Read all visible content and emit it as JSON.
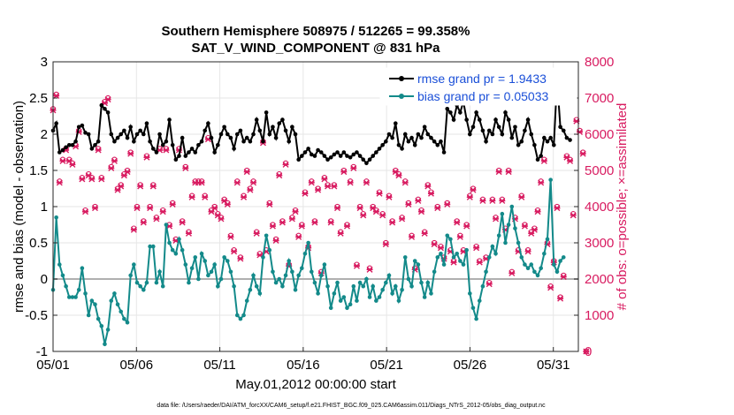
{
  "chart_data": {
    "type": "line",
    "title": "Southern Hemisphere 508975 / 512265 = 99.358%",
    "subtitle": "SAT_V_WIND_COMPONENT @ 831 hPa",
    "xlabel": "May.01,2012 00:00:00 start",
    "ylabel_left": "rmse and bias (model - observation)",
    "ylabel_right": "# of obs: o=possible; ×=assimilated",
    "footnote": "data file: /Users/raeder/DAI/ATM_forcXX/CAM6_setup/f.e21.FHIST_BGC.f09_025.CAM6assim.011/Diags_NTrS_2012-05/obs_diag_output.nc",
    "xlim": [
      0,
      31.5
    ],
    "ylim_left": [
      -1,
      3
    ],
    "ylim_right": [
      0,
      8000
    ],
    "x_ticks": [
      0,
      5,
      10,
      15,
      20,
      25,
      30
    ],
    "x_tick_labels": [
      "05/01",
      "05/06",
      "05/11",
      "05/16",
      "05/21",
      "05/26",
      "05/31"
    ],
    "y_ticks_left": [
      -1,
      -0.5,
      0,
      0.5,
      1,
      1.5,
      2,
      2.5,
      3
    ],
    "y_tick_labels_left": [
      "-1",
      "-0.5",
      "0",
      "0.5",
      "1",
      "1.5",
      "2",
      "2.5",
      "3"
    ],
    "y_ticks_right": [
      0,
      1000,
      2000,
      3000,
      4000,
      5000,
      6000,
      7000,
      8000
    ],
    "y_tick_labels_right": [
      "0",
      "1000",
      "2000",
      "3000",
      "4000",
      "5000",
      "6000",
      "7000",
      "8000"
    ],
    "grid": true,
    "legend_location": "top-right",
    "colors": {
      "rmse": "#000000",
      "bias": "#138a8a",
      "obs": "#d81b60",
      "zero": "#b0b0b0",
      "legend_text": "#1a4fd8"
    },
    "series": [
      {
        "name": "rmse grand pr = 1.9433",
        "legend_label": "rmse grand pr = 1.9433",
        "axis": "left",
        "values": [
          2.05,
          2.15,
          1.75,
          1.78,
          1.82,
          1.85,
          1.85,
          1.9,
          2.1,
          2.12,
          2.02,
          2.0,
          1.8,
          1.85,
          1.9,
          2.4,
          2.35,
          2.3,
          2.0,
          1.9,
          1.95,
          2.0,
          2.05,
          1.95,
          2.1,
          1.9,
          2.0,
          2.05,
          2.0,
          2.15,
          1.9,
          1.8,
          1.75,
          2.0,
          1.85,
          1.9,
          2.2,
          1.85,
          1.65,
          1.7,
          1.95,
          1.7,
          1.75,
          1.8,
          1.75,
          1.85,
          1.9,
          2.05,
          2.15,
          1.95,
          1.75,
          1.85,
          2.0,
          2.1,
          2.0,
          1.95,
          1.8,
          2.0,
          2.05,
          1.9,
          1.95,
          1.9,
          2.0,
          2.2,
          2.05,
          1.9,
          2.3,
          2.0,
          2.1,
          1.95,
          2.15,
          2.2,
          2.05,
          1.9,
          2.1,
          2.0,
          1.65,
          1.7,
          1.75,
          1.8,
          1.72,
          1.7,
          1.78,
          1.75,
          1.7,
          1.65,
          1.68,
          1.72,
          1.75,
          1.7,
          1.75,
          1.7,
          1.68,
          1.72,
          1.75,
          1.7,
          1.65,
          1.6,
          1.65,
          1.7,
          1.75,
          1.8,
          1.85,
          1.9,
          2.0,
          1.95,
          2.15,
          1.85,
          1.8,
          2.0,
          1.9,
          1.95,
          1.85,
          2.0,
          1.95,
          2.1,
          2.0,
          1.95,
          1.9,
          1.85,
          1.9,
          1.75,
          2.35,
          2.3,
          2.2,
          2.4,
          2.3,
          2.45,
          2.2,
          2.0,
          2.1,
          2.3,
          2.2,
          2.05,
          1.9,
          2.05,
          2.0,
          2.2,
          2.1,
          2.0,
          2.3,
          2.2,
          1.95,
          2.1,
          1.85,
          1.9,
          2.05,
          2.2,
          2.0,
          1.85,
          1.65,
          1.7,
          1.95,
          1.9,
          1.95,
          1.85,
          2.75,
          2.1,
          2.05,
          1.95,
          1.92
        ]
      },
      {
        "name": "bias grand pr = 0.05033",
        "legend_label": "bias grand pr = 0.05033",
        "axis": "left",
        "values": [
          -0.15,
          0.85,
          0.2,
          0.05,
          -0.1,
          -0.25,
          -0.25,
          -0.25,
          -0.15,
          0.15,
          -0.2,
          -0.5,
          -0.3,
          -0.35,
          -0.55,
          -0.65,
          -0.9,
          -0.7,
          -0.3,
          -0.2,
          -0.35,
          -0.45,
          -0.55,
          -0.6,
          0.05,
          0.2,
          -0.05,
          -0.1,
          -0.15,
          -0.05,
          0.45,
          0.45,
          -0.05,
          0.1,
          -0.1,
          0.75,
          0.5,
          0.4,
          0.35,
          0.55,
          0.4,
          0.2,
          -0.05,
          0.15,
          0.3,
          0.0,
          0.35,
          0.25,
          0.05,
          0.1,
          0.2,
          -0.1,
          0.0,
          0.3,
          0.25,
          0.1,
          -0.1,
          -0.5,
          -0.55,
          -0.5,
          -0.3,
          -0.15,
          0.05,
          -0.1,
          -0.2,
          0.3,
          0.6,
          0.4,
          0.1,
          -0.05,
          0.0,
          -0.1,
          0.05,
          0.25,
          0.1,
          -0.15,
          0.05,
          0.15,
          0.35,
          0.5,
          0.1,
          -0.05,
          -0.2,
          0.05,
          0.2,
          -0.1,
          -0.4,
          -0.2,
          -0.05,
          -0.3,
          -0.25,
          -0.4,
          -0.35,
          -0.1,
          -0.3,
          -0.05,
          -0.1,
          0.0,
          -0.25,
          -0.1,
          -0.3,
          -0.25,
          -0.15,
          -0.05,
          0.05,
          -0.2,
          -0.1,
          -0.3,
          -0.15,
          0.3,
          0.0,
          -0.1,
          0.25,
          0.2,
          -0.05,
          -0.25,
          -0.05,
          -0.2,
          0.1,
          0.3,
          0.35,
          0.2,
          0.6,
          0.55,
          0.3,
          0.35,
          0.25,
          0.2,
          0.4,
          -0.2,
          -0.4,
          -0.55,
          -0.3,
          -0.1,
          0.1,
          0.3,
          0.45,
          0.35,
          0.6,
          0.9,
          0.5,
          0.75,
          1.0,
          0.7,
          0.5,
          0.3,
          0.2,
          0.15,
          0.2,
          0.1,
          0.05,
          0.15,
          0.35,
          0.55,
          1.37,
          0.2,
          0.1,
          0.25,
          0.3
        ]
      },
      {
        "name": "# of obs possible",
        "axis": "right",
        "marker": "o",
        "values": [
          6700,
          7100,
          4700,
          5300,
          5600,
          5300,
          5200,
          5700,
          6100,
          4800,
          3900,
          4900,
          4800,
          4000,
          5600,
          4800,
          6900,
          7000,
          5100,
          5300,
          4500,
          4600,
          4900,
          5000,
          5500,
          3400,
          4000,
          4600,
          3600,
          5400,
          4000,
          4600,
          3700,
          5600,
          3900,
          5600,
          3500,
          4100,
          3100,
          5600,
          3600,
          5100,
          3300,
          4300,
          4700,
          4700,
          4700,
          4300,
          5900,
          3900,
          4000,
          3800,
          3700,
          4200,
          4100,
          3200,
          2800,
          4700,
          2600,
          4300,
          5000,
          4500,
          4700,
          3300,
          2700,
          5800,
          2800,
          4100,
          3500,
          3100,
          4900,
          3600,
          5200,
          2400,
          3700,
          3900,
          3200,
          3500,
          4400,
          2900,
          4700,
          3600,
          4500,
          2200,
          4800,
          4600,
          3600,
          4600,
          4000,
          3300,
          5000,
          3500,
          4700,
          5100,
          2400,
          4000,
          3800,
          4700,
          2300,
          4000,
          3900,
          4400,
          3800,
          3000,
          4300,
          3600,
          5000,
          4900,
          3700,
          4700,
          4100,
          3200,
          2300,
          4200,
          3900,
          3300,
          4600,
          4400,
          3000,
          4000,
          2900,
          2600,
          4100,
          2800,
          2500,
          3600,
          3200,
          2800,
          3500,
          4300,
          4500,
          2900,
          2500,
          4200,
          2600,
          1900,
          4200,
          3700,
          5000,
          4200,
          3400,
          5000,
          2200,
          3700,
          2800,
          4300,
          3500,
          2800,
          3300,
          3400,
          3900,
          4700,
          5300,
          3000,
          1800,
          2500,
          4000,
          1500,
          2100,
          5400,
          5300,
          3800,
          6400,
          6100,
          5500,
          0
        ]
      },
      {
        "name": "# of obs assimilated",
        "axis": "right",
        "marker": "x",
        "values": [
          6660,
          7060,
          4660,
          5260,
          5560,
          5260,
          5160,
          5660,
          6060,
          4760,
          3860,
          4860,
          4760,
          3960,
          5560,
          4760,
          6860,
          6960,
          5060,
          5260,
          4460,
          4560,
          4860,
          4960,
          5460,
          3360,
          3960,
          4560,
          3560,
          5360,
          3960,
          4560,
          3660,
          5560,
          3860,
          5560,
          3460,
          4060,
          3060,
          5560,
          3560,
          5060,
          3260,
          4260,
          4660,
          4660,
          4660,
          4260,
          5860,
          3860,
          3960,
          3760,
          3660,
          4160,
          4060,
          3160,
          2760,
          4660,
          2560,
          4260,
          4960,
          4460,
          4660,
          3260,
          2660,
          5760,
          2760,
          4060,
          3460,
          3060,
          4860,
          3560,
          5160,
          2360,
          3660,
          3860,
          3160,
          3460,
          4360,
          2860,
          4660,
          3560,
          4460,
          2160,
          4760,
          4560,
          3560,
          4560,
          3960,
          3260,
          4960,
          3460,
          4660,
          5060,
          2360,
          3960,
          3760,
          4660,
          2260,
          3960,
          3860,
          4360,
          3760,
          2960,
          4260,
          3560,
          4960,
          4860,
          3660,
          4660,
          4060,
          3160,
          2260,
          4160,
          3860,
          3260,
          4560,
          4360,
          2960,
          3960,
          2860,
          2560,
          4060,
          2760,
          2460,
          3560,
          3160,
          2760,
          3460,
          4260,
          4460,
          2860,
          2460,
          4160,
          2560,
          1860,
          4160,
          3660,
          4960,
          4160,
          3360,
          4960,
          2160,
          3660,
          2760,
          4260,
          3460,
          2760,
          3260,
          3360,
          3860,
          4660,
          5260,
          2960,
          1760,
          2460,
          3960,
          1460,
          2060,
          5360,
          5260,
          3760,
          6360,
          6060,
          5460,
          0
        ]
      }
    ]
  }
}
